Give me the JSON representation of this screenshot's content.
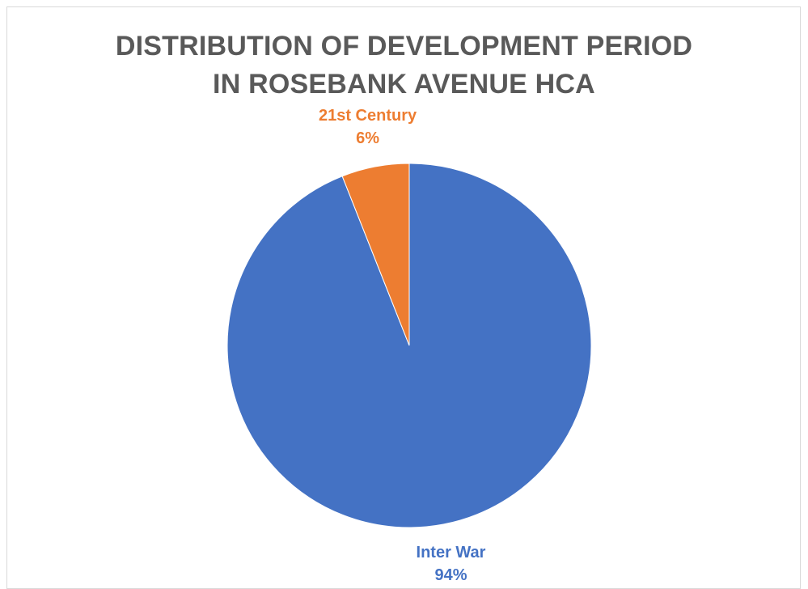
{
  "chart_data": {
    "type": "pie",
    "title_lines": [
      "DISTRIBUTION OF DEVELOPMENT PERIOD",
      "IN ROSEBANK AVENUE HCA"
    ],
    "slices": [
      {
        "label": "Inter War",
        "value": 94,
        "value_label": "94%",
        "color": "#4472C4"
      },
      {
        "label": "21st Century",
        "value": 6,
        "value_label": "6%",
        "color": "#ED7D31"
      }
    ],
    "legend": "none",
    "data_labels": "category name and percentage, outside end"
  },
  "colors": {
    "title": "#595959",
    "frame_border": "#d9d9d9",
    "background": "#ffffff"
  }
}
